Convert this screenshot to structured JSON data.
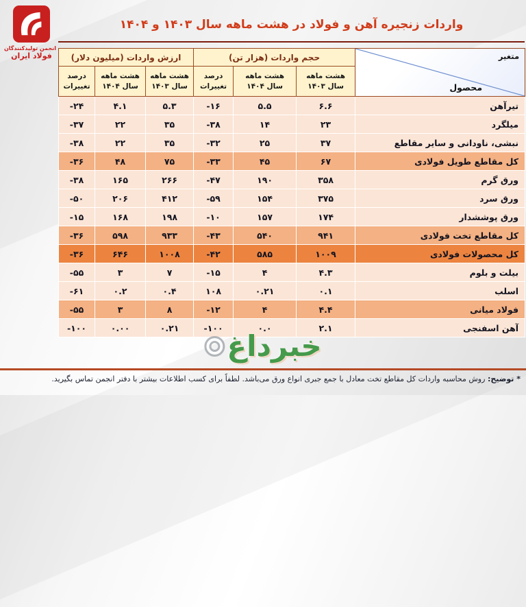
{
  "page": {
    "title": "واردات زنجیره آهن و فولاد در هشت ماهه سال ۱۴۰۳ و ۱۴۰۴",
    "watermark": "خبرداغ",
    "footnote_label": "* توضیح:",
    "footnote_text": "روش محاسبه واردات کل مقاطع تخت معادل با جمع جبری انواع ورق می‌باشد. لطفاً برای کسب اطلاعات بیشتر با دفتر انجمن تماس بگیرید."
  },
  "logo": {
    "line1": "انجمن تولیدکنندگان",
    "line2": "فولاد ایران"
  },
  "table": {
    "corner": {
      "top": "متغیر",
      "bottom": "محصول"
    },
    "groups": [
      {
        "label": "حجم واردات (هزار تن)"
      },
      {
        "label": "ارزش واردات (میلیون دلار)"
      }
    ],
    "subheaders": {
      "y1403": "هشت ماهه\nسال ۱۴۰۳",
      "y1404": "هشت ماهه\nسال ۱۴۰۴",
      "pct": "درصد\nتغییرات"
    },
    "rows": [
      {
        "product": "تیرآهن",
        "vol_1403": "۶.۶",
        "vol_1404": "۵.۵",
        "vol_pct": "-۱۶",
        "val_1403": "۵.۳",
        "val_1404": "۴.۱",
        "val_pct": "-۲۴",
        "style": "normal"
      },
      {
        "product": "میلگرد",
        "vol_1403": "۲۳",
        "vol_1404": "۱۴",
        "vol_pct": "-۳۸",
        "val_1403": "۳۵",
        "val_1404": "۲۲",
        "val_pct": "-۳۷",
        "style": "normal"
      },
      {
        "product": "نبشی، ناودانی و سایر مقاطع",
        "vol_1403": "۳۷",
        "vol_1404": "۲۵",
        "vol_pct": "-۳۲",
        "val_1403": "۳۵",
        "val_1404": "۲۲",
        "val_pct": "-۳۸",
        "style": "normal"
      },
      {
        "product": "کل مقاطع طویل فولادی",
        "vol_1403": "۶۷",
        "vol_1404": "۴۵",
        "vol_pct": "-۳۳",
        "val_1403": "۷۵",
        "val_1404": "۴۸",
        "val_pct": "-۳۶",
        "style": "subtotal"
      },
      {
        "product": "ورق گرم",
        "vol_1403": "۳۵۸",
        "vol_1404": "۱۹۰",
        "vol_pct": "-۴۷",
        "val_1403": "۲۶۶",
        "val_1404": "۱۶۵",
        "val_pct": "-۳۸",
        "style": "normal"
      },
      {
        "product": "ورق سرد",
        "vol_1403": "۳۷۵",
        "vol_1404": "۱۵۴",
        "vol_pct": "-۵۹",
        "val_1403": "۴۱۲",
        "val_1404": "۲۰۶",
        "val_pct": "-۵۰",
        "style": "normal"
      },
      {
        "product": "ورق پوششدار",
        "vol_1403": "۱۷۴",
        "vol_1404": "۱۵۷",
        "vol_pct": "-۱۰",
        "val_1403": "۱۹۸",
        "val_1404": "۱۶۸",
        "val_pct": "-۱۵",
        "style": "normal"
      },
      {
        "product": "کل مقاطع تخت فولادی",
        "vol_1403": "۹۴۱",
        "vol_1404": "۵۴۰",
        "vol_pct": "-۴۳",
        "val_1403": "۹۳۳",
        "val_1404": "۵۹۸",
        "val_pct": "-۳۶",
        "style": "subtotal"
      },
      {
        "product": "کل محصولات فولادی",
        "vol_1403": "۱۰۰۹",
        "vol_1404": "۵۸۵",
        "vol_pct": "-۴۲",
        "val_1403": "۱۰۰۸",
        "val_1404": "۶۴۶",
        "val_pct": "-۳۶",
        "style": "total"
      },
      {
        "product": "بیلت و بلوم",
        "vol_1403": "۴.۳",
        "vol_1404": "۴",
        "vol_pct": "-۱۵",
        "val_1403": "۷",
        "val_1404": "۳",
        "val_pct": "-۵۵",
        "style": "normal"
      },
      {
        "product": "اسلب",
        "vol_1403": "۰.۱",
        "vol_1404": "۰.۲۱",
        "vol_pct": "۱۰۸",
        "val_1403": "۰.۴",
        "val_1404": "۰.۲",
        "val_pct": "-۶۱",
        "style": "normal"
      },
      {
        "product": "فولاد میانی",
        "vol_1403": "۴.۴",
        "vol_1404": "۴",
        "vol_pct": "-۱۲",
        "val_1403": "۸",
        "val_1404": "۳",
        "val_pct": "-۵۵",
        "style": "subtotal"
      },
      {
        "product": "آهن اسفنجی",
        "vol_1403": "۲.۱",
        "vol_1404": "۰.۰",
        "vol_pct": "-۱۰۰",
        "val_1403": "۰.۲۱",
        "val_1404": "۰.۰۰",
        "val_pct": "-۱۰۰",
        "style": "normal"
      }
    ]
  },
  "colors": {
    "title-accent": "#d03c1a",
    "rule-dark": "#7c1d0e",
    "header-bg": "#fff3cd",
    "header-border": "#9a4a22",
    "header-text": "#7c2d12",
    "row-bg": "#fbe5d6",
    "subtotal-bg": "#f4b183",
    "total-bg": "#ec8440",
    "grid-white": "#ffffff",
    "number-ink": "#141420",
    "bottom-rule": "#b54a24",
    "watermark-green": "#2e8f35",
    "logo-red": "#c8201f",
    "corner-line": "#6e8fd0"
  }
}
